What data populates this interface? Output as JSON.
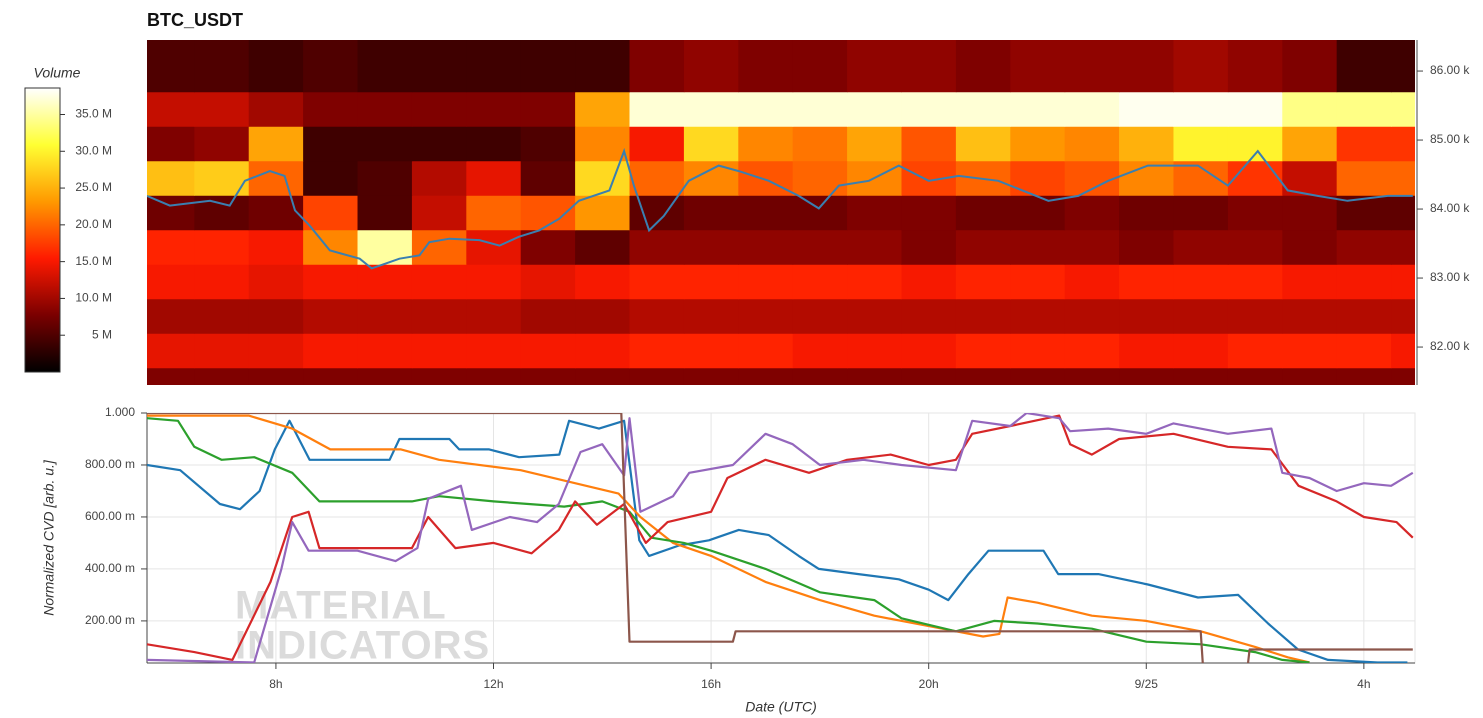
{
  "chart_data": [
    {
      "type": "heatmap",
      "title": "BTC_USDT",
      "colorbar_title": "Volume",
      "xlim": [
        5.63,
        28.94
      ],
      "x_bins": [
        5.63,
        6.5,
        7.5,
        8.5,
        9.5,
        10.5,
        11.5,
        12.5,
        13.5,
        14.5,
        15.5,
        16.5,
        17.5,
        18.5,
        19.5,
        20.5,
        21.5,
        22.5,
        23.5,
        24.5,
        25.5,
        26.5,
        27.5,
        28.5,
        28.94
      ],
      "y_bins": [
        81450,
        81700,
        82200,
        82700,
        83200,
        83700,
        84200,
        84700,
        85200,
        85700,
        86450
      ],
      "ylim": [
        81450,
        86450
      ],
      "yticks": [
        {
          "value": 82000,
          "label": "82.00 k"
        },
        {
          "value": 83000,
          "label": "83.00 k"
        },
        {
          "value": 84000,
          "label": "84.00 k"
        },
        {
          "value": 85000,
          "label": "85.00 k"
        },
        {
          "value": 86000,
          "label": "86.00 k"
        }
      ],
      "zlim": [
        0,
        38.6
      ],
      "zticks": [
        {
          "value": 5,
          "label": "5 M"
        },
        {
          "value": 10,
          "label": "10.0 M"
        },
        {
          "value": 15,
          "label": "15.0 M"
        },
        {
          "value": 20,
          "label": "20.0 M"
        },
        {
          "value": 25,
          "label": "25.0 M"
        },
        {
          "value": 30,
          "label": "30.0 M"
        },
        {
          "value": 35,
          "label": "35.0 M"
        }
      ],
      "colorscale": [
        "#000000",
        "#7a0000",
        "#ff1a00",
        "#ff9900",
        "#ffff33",
        "#ffffff"
      ],
      "z": [
        [
          8,
          8,
          8,
          8,
          8,
          8,
          8,
          8,
          8,
          8,
          8,
          8,
          8,
          8,
          8,
          8,
          8,
          8,
          8,
          8,
          8,
          8,
          8,
          8
        ],
        [
          14,
          14,
          14,
          15,
          15,
          15,
          15,
          15,
          15,
          16,
          16,
          16,
          15,
          15,
          15,
          16,
          16,
          16,
          15,
          15,
          16,
          16,
          16,
          15
        ],
        [
          10,
          10,
          10,
          11,
          11,
          11,
          11,
          10,
          10,
          11,
          11,
          11,
          11,
          11,
          11,
          11,
          11,
          11,
          11,
          11,
          11,
          11,
          11,
          11
        ],
        [
          15,
          15,
          14,
          15,
          15,
          15,
          15,
          14,
          15,
          16,
          16,
          16,
          16,
          16,
          15,
          16,
          16,
          15,
          16,
          16,
          16,
          15,
          15,
          15
        ],
        [
          16,
          16,
          15,
          22,
          35,
          20,
          14,
          8,
          6,
          9,
          9,
          9,
          9,
          9,
          8,
          9,
          9,
          9,
          8,
          9,
          9,
          8,
          9,
          9
        ],
        [
          7,
          6,
          7,
          18,
          5,
          12,
          20,
          19,
          23,
          6,
          7,
          7,
          7,
          8,
          8,
          7,
          7,
          8,
          7,
          7,
          8,
          8,
          6,
          6
        ],
        [
          26,
          27,
          20,
          4,
          5,
          11,
          14,
          6,
          28,
          20,
          22,
          19,
          20,
          22,
          18,
          20,
          18,
          19,
          22,
          20,
          17,
          12,
          20,
          20
        ],
        [
          8,
          9,
          24,
          4,
          4,
          4,
          4,
          5,
          22,
          15,
          28,
          22,
          21,
          24,
          19,
          26,
          23,
          22,
          25,
          30,
          30,
          24,
          17,
          17
        ],
        [
          12,
          12,
          10,
          8,
          8,
          8,
          8,
          8,
          24,
          37,
          37,
          37,
          37,
          37,
          37,
          37,
          37,
          37,
          38,
          38,
          38,
          34,
          34,
          34
        ],
        [
          5,
          5,
          4,
          5,
          4,
          4,
          4,
          4,
          4,
          8,
          9,
          8,
          8,
          9,
          9,
          8,
          9,
          9,
          9,
          10,
          9,
          8,
          4,
          4
        ]
      ],
      "price": {
        "color": "#3a7fb0",
        "x": [
          5.63,
          6.05,
          6.79,
          7.15,
          7.43,
          7.89,
          8.16,
          8.35,
          8.62,
          8.99,
          9.54,
          9.76,
          10.27,
          10.64,
          10.82,
          11.19,
          11.74,
          12.11,
          12.47,
          12.84,
          13.21,
          13.57,
          14.13,
          14.4,
          14.58,
          14.86,
          15.13,
          15.59,
          16.14,
          16.51,
          17.06,
          17.61,
          17.98,
          18.35,
          18.9,
          19.45,
          20.0,
          20.55,
          21.28,
          22.2,
          22.75,
          23.3,
          24.03,
          24.95,
          25.5,
          26.05,
          26.6,
          27.15,
          27.7,
          28.44,
          28.9
        ],
        "values": [
          84190,
          84050,
          84120,
          84050,
          84410,
          84550,
          84480,
          83980,
          83760,
          83400,
          83280,
          83140,
          83280,
          83330,
          83520,
          83570,
          83550,
          83470,
          83600,
          83690,
          83860,
          84120,
          84270,
          84840,
          84340,
          83690,
          83900,
          84410,
          84630,
          84550,
          84410,
          84190,
          84010,
          84340,
          84410,
          84630,
          84410,
          84480,
          84410,
          84120,
          84190,
          84410,
          84630,
          84630,
          84340,
          84840,
          84270,
          84190,
          84120,
          84190,
          84190
        ]
      }
    },
    {
      "type": "line",
      "x_label": "Date (UTC)",
      "y_label": "Normalized CVD [arb. u.]",
      "watermark": [
        "MATERIAL",
        "INDICATORS"
      ],
      "xlim": [
        5.63,
        28.94
      ],
      "xticks": [
        {
          "value": 8,
          "label": "8h"
        },
        {
          "value": 12,
          "label": "12h"
        },
        {
          "value": 16,
          "label": "16h"
        },
        {
          "value": 20,
          "label": "20h"
        },
        {
          "value": 24,
          "label": "9/25"
        },
        {
          "value": 28,
          "label": "4h"
        }
      ],
      "ylim": [
        0.038,
        1.0
      ],
      "yticks": [
        {
          "value": 0.2,
          "label": "200.00 m"
        },
        {
          "value": 0.4,
          "label": "400.00 m"
        },
        {
          "value": 0.6,
          "label": "600.00 m"
        },
        {
          "value": 0.8,
          "label": "800.00 m"
        },
        {
          "value": 1,
          "label": "1.000"
        }
      ],
      "grid": true,
      "series": [
        {
          "color": "#1f77b4",
          "x": [
            5.63,
            6.24,
            6.97,
            7.34,
            7.7,
            7.98,
            8.25,
            8.62,
            10.09,
            10.27,
            11.19,
            11.37,
            11.92,
            12.47,
            13.21,
            13.39,
            13.94,
            14.4,
            14.68,
            14.86,
            15.41,
            15.96,
            16.51,
            17.06,
            17.61,
            17.98,
            18.71,
            19.45,
            20.0,
            20.36,
            20.73,
            21.1,
            21.46,
            22.11,
            22.38,
            23.12,
            24.03,
            24.95,
            25.69,
            26.24,
            26.79,
            27.34,
            28.25,
            28.8
          ],
          "values": [
            0.8,
            0.78,
            0.65,
            0.63,
            0.7,
            0.86,
            0.97,
            0.82,
            0.82,
            0.9,
            0.9,
            0.86,
            0.86,
            0.83,
            0.84,
            0.97,
            0.94,
            0.97,
            0.51,
            0.45,
            0.49,
            0.51,
            0.55,
            0.53,
            0.45,
            0.4,
            0.38,
            0.36,
            0.32,
            0.28,
            0.38,
            0.47,
            0.47,
            0.47,
            0.38,
            0.38,
            0.34,
            0.29,
            0.3,
            0.19,
            0.09,
            0.05,
            0.04,
            0.04
          ]
        },
        {
          "color": "#ff7f0e",
          "x": [
            5.63,
            7.5,
            8.3,
            9.0,
            10.3,
            11.0,
            12.5,
            13.5,
            14.3,
            14.7,
            15.3,
            16.0,
            17.0,
            18.0,
            19.0,
            20.0,
            21.0,
            21.3,
            21.45,
            22.0,
            23.0,
            24.0,
            25.0,
            26.0,
            26.6,
            27.0
          ],
          "values": [
            0.99,
            0.99,
            0.94,
            0.86,
            0.86,
            0.82,
            0.78,
            0.73,
            0.69,
            0.6,
            0.5,
            0.45,
            0.35,
            0.28,
            0.22,
            0.18,
            0.14,
            0.15,
            0.29,
            0.27,
            0.22,
            0.2,
            0.16,
            0.1,
            0.06,
            0.04
          ]
        },
        {
          "color": "#2ca02c",
          "x": [
            5.63,
            6.2,
            6.5,
            7.0,
            7.6,
            8.3,
            8.8,
            10.5,
            11.0,
            12.0,
            13.3,
            14.0,
            14.5,
            14.9,
            15.5,
            16.0,
            17.0,
            18.0,
            19.0,
            19.5,
            20.5,
            21.2,
            22.0,
            23.0,
            24.0,
            25.0,
            26.0,
            26.5,
            27.0
          ],
          "values": [
            0.98,
            0.97,
            0.87,
            0.82,
            0.83,
            0.77,
            0.66,
            0.66,
            0.68,
            0.66,
            0.64,
            0.66,
            0.62,
            0.52,
            0.5,
            0.47,
            0.4,
            0.31,
            0.28,
            0.21,
            0.16,
            0.2,
            0.19,
            0.17,
            0.12,
            0.11,
            0.08,
            0.05,
            0.04
          ]
        },
        {
          "color": "#d62728",
          "x": [
            5.63,
            6.5,
            7.2,
            7.9,
            8.3,
            8.6,
            8.8,
            10.5,
            10.8,
            11.3,
            12.0,
            12.7,
            13.2,
            13.5,
            13.9,
            14.4,
            14.8,
            15.2,
            16.0,
            16.3,
            17.0,
            17.8,
            18.5,
            19.3,
            20.0,
            20.5,
            20.8,
            21.5,
            22.4,
            22.6,
            23.0,
            23.5,
            24.5,
            25.5,
            26.3,
            26.8,
            27.5,
            28.0,
            28.6,
            28.9
          ],
          "values": [
            0.11,
            0.08,
            0.05,
            0.35,
            0.6,
            0.62,
            0.48,
            0.48,
            0.6,
            0.48,
            0.5,
            0.46,
            0.55,
            0.66,
            0.57,
            0.65,
            0.5,
            0.58,
            0.62,
            0.75,
            0.82,
            0.77,
            0.82,
            0.84,
            0.8,
            0.82,
            0.92,
            0.95,
            0.99,
            0.88,
            0.84,
            0.9,
            0.92,
            0.87,
            0.86,
            0.72,
            0.66,
            0.6,
            0.58,
            0.52
          ]
        },
        {
          "color": "#9467bd",
          "x": [
            5.63,
            7.6,
            8.1,
            8.3,
            8.6,
            9.5,
            10.2,
            10.6,
            10.8,
            11.4,
            11.6,
            12.3,
            12.8,
            13.2,
            13.6,
            14.0,
            14.4,
            14.5,
            14.7,
            15.3,
            15.6,
            16.4,
            17.0,
            17.5,
            18.0,
            18.8,
            19.5,
            20.5,
            20.8,
            21.5,
            21.8,
            22.4,
            22.6,
            23.3,
            24.0,
            24.5,
            25.5,
            26.3,
            26.5,
            27.0,
            27.5,
            28.0,
            28.5,
            28.9
          ],
          "values": [
            0.05,
            0.04,
            0.4,
            0.58,
            0.47,
            0.47,
            0.43,
            0.48,
            0.67,
            0.72,
            0.55,
            0.6,
            0.58,
            0.65,
            0.85,
            0.88,
            0.76,
            0.98,
            0.62,
            0.68,
            0.77,
            0.8,
            0.92,
            0.88,
            0.8,
            0.82,
            0.8,
            0.78,
            0.97,
            0.95,
            1.0,
            0.98,
            0.93,
            0.94,
            0.92,
            0.96,
            0.92,
            0.94,
            0.77,
            0.75,
            0.7,
            0.73,
            0.72,
            0.77
          ]
        },
        {
          "color": "#8c564b",
          "x": [
            5.63,
            14.35,
            14.5,
            16.4,
            16.45,
            25.0,
            25.05,
            25.85,
            25.9,
            28.9
          ],
          "values": [
            1.0,
            1.0,
            0.12,
            0.12,
            0.16,
            0.16,
            0.0,
            0.0,
            0.09,
            0.09
          ]
        }
      ]
    }
  ]
}
